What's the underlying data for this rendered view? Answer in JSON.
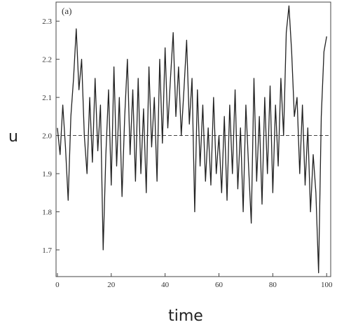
{
  "chart_data": {
    "type": "line",
    "annotation": "(a)",
    "xlabel": "time",
    "ylabel": "u",
    "x": [
      0,
      1,
      2,
      3,
      4,
      5,
      6,
      7,
      8,
      9,
      10,
      11,
      12,
      13,
      14,
      15,
      16,
      17,
      18,
      19,
      20,
      21,
      22,
      23,
      24,
      25,
      26,
      27,
      28,
      29,
      30,
      31,
      32,
      33,
      34,
      35,
      36,
      37,
      38,
      39,
      40,
      41,
      42,
      43,
      44,
      45,
      46,
      47,
      48,
      49,
      50,
      51,
      52,
      53,
      54,
      55,
      56,
      57,
      58,
      59,
      60,
      61,
      62,
      63,
      64,
      65,
      66,
      67,
      68,
      69,
      70,
      71,
      72,
      73,
      74,
      75,
      76,
      77,
      78,
      79,
      80,
      81,
      82,
      83,
      84,
      85,
      86,
      87,
      88,
      89,
      90,
      91,
      92,
      93,
      94,
      95,
      96,
      97,
      98,
      99,
      100
    ],
    "values": [
      2.02,
      1.95,
      2.08,
      1.97,
      1.83,
      2.05,
      2.15,
      2.28,
      2.12,
      2.2,
      2.0,
      1.9,
      2.1,
      1.93,
      2.15,
      1.96,
      2.08,
      1.7,
      1.95,
      2.12,
      1.87,
      2.18,
      1.92,
      2.1,
      1.84,
      2.05,
      2.2,
      1.95,
      2.12,
      1.88,
      2.15,
      1.9,
      2.07,
      1.85,
      2.18,
      1.97,
      2.1,
      1.88,
      2.2,
      1.98,
      2.23,
      2.02,
      2.15,
      2.27,
      2.05,
      2.18,
      2.0,
      2.12,
      2.25,
      2.03,
      2.15,
      1.8,
      2.12,
      1.92,
      2.08,
      1.88,
      2.02,
      1.87,
      2.1,
      1.9,
      2.0,
      1.85,
      2.05,
      1.83,
      2.08,
      1.9,
      2.12,
      1.86,
      2.02,
      1.8,
      2.08,
      1.92,
      1.77,
      2.15,
      1.88,
      2.05,
      1.82,
      2.1,
      1.9,
      2.13,
      1.85,
      2.08,
      1.92,
      2.15,
      2.0,
      2.27,
      2.34,
      2.22,
      2.05,
      2.1,
      1.9,
      2.08,
      1.87,
      2.02,
      1.8,
      1.95,
      1.85,
      1.64,
      2.05,
      2.22,
      2.26
    ],
    "color": "#222222",
    "reference_line": 2.0,
    "xlim": [
      -0.5,
      101.5
    ],
    "ylim": [
      1.63,
      2.35
    ],
    "xticks": [
      0,
      20,
      40,
      60,
      80,
      100
    ],
    "yticks": [
      1.7,
      1.8,
      1.9,
      {
        "value": 2.0,
        "label": "2.0"
      },
      2.1,
      2.2,
      2.3
    ]
  }
}
